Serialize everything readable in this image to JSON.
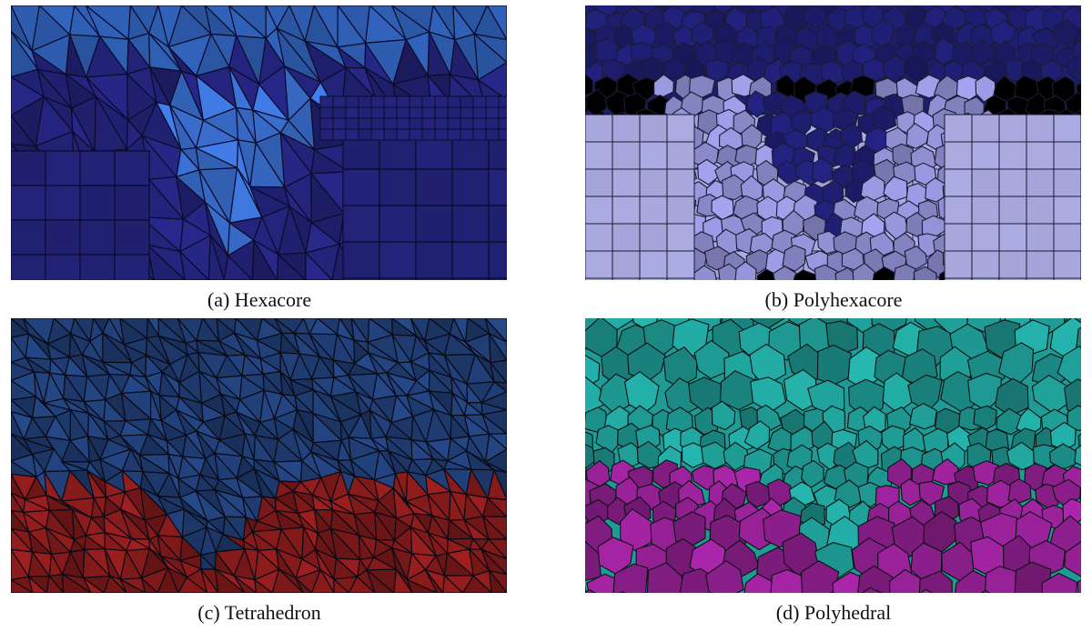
{
  "figure": {
    "panels": [
      {
        "id": "a",
        "caption": "(a) Hexacore",
        "colors": {
          "top": "#2f5fb4",
          "bottom": "#23237a",
          "core": "#3a6fd0",
          "edge": "#0b0b2a"
        }
      },
      {
        "id": "b",
        "caption": "(b) Polyhexacore",
        "colors": {
          "top": "#1d1d6e",
          "bottom": "#a9a9e0",
          "core": "#8888c8",
          "edge": "#1a1a33"
        }
      },
      {
        "id": "c",
        "caption": "(c) Tetrahedron",
        "colors": {
          "top": "#1e3a6e",
          "bottom": "#7a1818",
          "edge": "#0a0a14"
        }
      },
      {
        "id": "d",
        "caption": "(d) Polyhedral",
        "colors": {
          "top": "#1f9a94",
          "bottom": "#8a1e8a",
          "edge": "#0b1212"
        }
      }
    ]
  }
}
